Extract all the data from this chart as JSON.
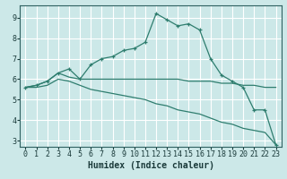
{
  "xlabel": "Humidex (Indice chaleur)",
  "x": [
    0,
    1,
    2,
    3,
    4,
    5,
    6,
    7,
    8,
    9,
    10,
    11,
    12,
    13,
    14,
    15,
    16,
    17,
    18,
    19,
    20,
    21,
    22,
    23
  ],
  "line1": [
    5.6,
    5.7,
    5.9,
    6.3,
    6.5,
    6.0,
    6.7,
    7.0,
    7.1,
    7.4,
    7.5,
    7.8,
    9.2,
    8.9,
    8.6,
    8.7,
    8.4,
    7.0,
    6.2,
    5.9,
    5.6,
    4.5,
    4.5,
    2.8
  ],
  "line2": [
    5.6,
    5.7,
    5.9,
    6.3,
    6.1,
    6.0,
    6.0,
    6.0,
    6.0,
    6.0,
    6.0,
    6.0,
    6.0,
    6.0,
    6.0,
    5.9,
    5.9,
    5.9,
    5.8,
    5.8,
    5.7,
    5.7,
    5.6,
    5.6
  ],
  "line3": [
    5.6,
    5.6,
    5.7,
    6.0,
    5.9,
    5.7,
    5.5,
    5.4,
    5.3,
    5.2,
    5.1,
    5.0,
    4.8,
    4.7,
    4.5,
    4.4,
    4.3,
    4.1,
    3.9,
    3.8,
    3.6,
    3.5,
    3.4,
    2.8
  ],
  "line_color": "#2e7d6e",
  "bg_color": "#cce8e8",
  "plot_bg_color": "#cce8e8",
  "grid_color": "#ffffff",
  "ylim_min": 2.7,
  "ylim_max": 9.6,
  "xlim_min": -0.5,
  "xlim_max": 23.5,
  "yticks": [
    3,
    4,
    5,
    6,
    7,
    8,
    9
  ],
  "xticks": [
    0,
    1,
    2,
    3,
    4,
    5,
    6,
    7,
    8,
    9,
    10,
    11,
    12,
    13,
    14,
    15,
    16,
    17,
    18,
    19,
    20,
    21,
    22,
    23
  ],
  "tick_fontsize": 6.0,
  "xlabel_fontsize": 7.0,
  "marker": "+"
}
